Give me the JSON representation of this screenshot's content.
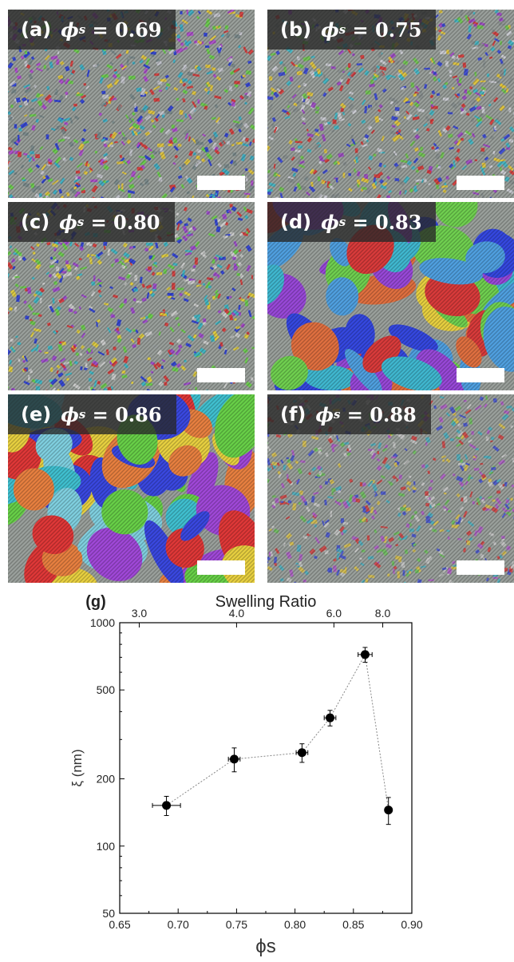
{
  "panels": [
    {
      "tag": "(a)",
      "symbol": "ϕ",
      "sub": "s",
      "value": "= 0.69",
      "palette": [
        "#7a8a8c",
        "#c8c8d0",
        "#d93b3b",
        "#2e3fd8",
        "#3bb0c8",
        "#e6c83a",
        "#6ad04a",
        "#b04ad0"
      ]
    },
    {
      "tag": "(b)",
      "symbol": "ϕ",
      "sub": "s",
      "value": "= 0.75",
      "palette": [
        "#8a9090",
        "#d0d0d8",
        "#d93b3b",
        "#3a48d8",
        "#40b8c8",
        "#e6c83a",
        "#70c850",
        "#a048c8"
      ]
    },
    {
      "tag": "(c)",
      "symbol": "ϕ",
      "sub": "s",
      "value": "= 0.80",
      "palette": [
        "#d93b3b",
        "#2e3fd8",
        "#3bb8c8",
        "#e6d03a",
        "#6ad04a",
        "#a048d0",
        "#9aa0a0",
        "#d0d0d0"
      ]
    },
    {
      "tag": "(d)",
      "symbol": "ϕ",
      "sub": "s",
      "value": "= 0.83",
      "palette": [
        "#d93b3b",
        "#3548e0",
        "#40b8d0",
        "#e8d040",
        "#70d050",
        "#9848d8",
        "#e07040",
        "#50a0e0"
      ]
    },
    {
      "tag": "(e)",
      "symbol": "ϕ",
      "sub": "s",
      "value": "= 0.86",
      "palette": [
        "#e03838",
        "#3a48e0",
        "#40c0d0",
        "#e8d040",
        "#68d048",
        "#a048d8",
        "#e88040",
        "#80d0e0"
      ]
    },
    {
      "tag": "(f)",
      "symbol": "ϕ",
      "sub": "s",
      "value": "= 0.88",
      "palette": [
        "#9aa0a0",
        "#c8c8c8",
        "#d04848",
        "#4a58d0",
        "#50b0c0",
        "#d8c050",
        "#70c060",
        "#b060c8"
      ]
    }
  ],
  "chart_data": {
    "type": "scatter",
    "panel_label": "(g)",
    "xlabel": "ϕs",
    "ylabel": "ξ (nm)",
    "top_axis_label": "Swelling Ratio",
    "x": [
      0.69,
      0.748,
      0.806,
      0.83,
      0.86,
      0.88
    ],
    "y": [
      152,
      245,
      262,
      375,
      720,
      145
    ],
    "xerr": [
      0.012,
      0.005,
      0.005,
      0.005,
      0.006,
      0.0
    ],
    "yerr_low": [
      15,
      30,
      25,
      30,
      55,
      20
    ],
    "yerr_high": [
      15,
      30,
      25,
      30,
      55,
      20
    ],
    "xlim": [
      0.65,
      0.9
    ],
    "ylim": [
      50,
      1000
    ],
    "yscale": "log",
    "xticks": [
      0.65,
      0.7,
      0.75,
      0.8,
      0.85,
      0.9
    ],
    "xtick_labels": [
      "0.65",
      "0.70",
      "0.75",
      "0.80",
      "0.85",
      "0.90"
    ],
    "yticks": [
      50,
      100,
      200,
      500,
      1000
    ],
    "ytick_labels": [
      "50",
      "100",
      "200",
      "500",
      "1000"
    ],
    "top_ticks_phi": [
      0.6667,
      0.75,
      0.8333,
      0.8751
    ],
    "top_tick_labels": [
      "3.0",
      "4.0",
      "6.0",
      "8.0"
    ],
    "connecting_line": "dotted",
    "marker_color": "#000000",
    "line_color": "#888888"
  }
}
